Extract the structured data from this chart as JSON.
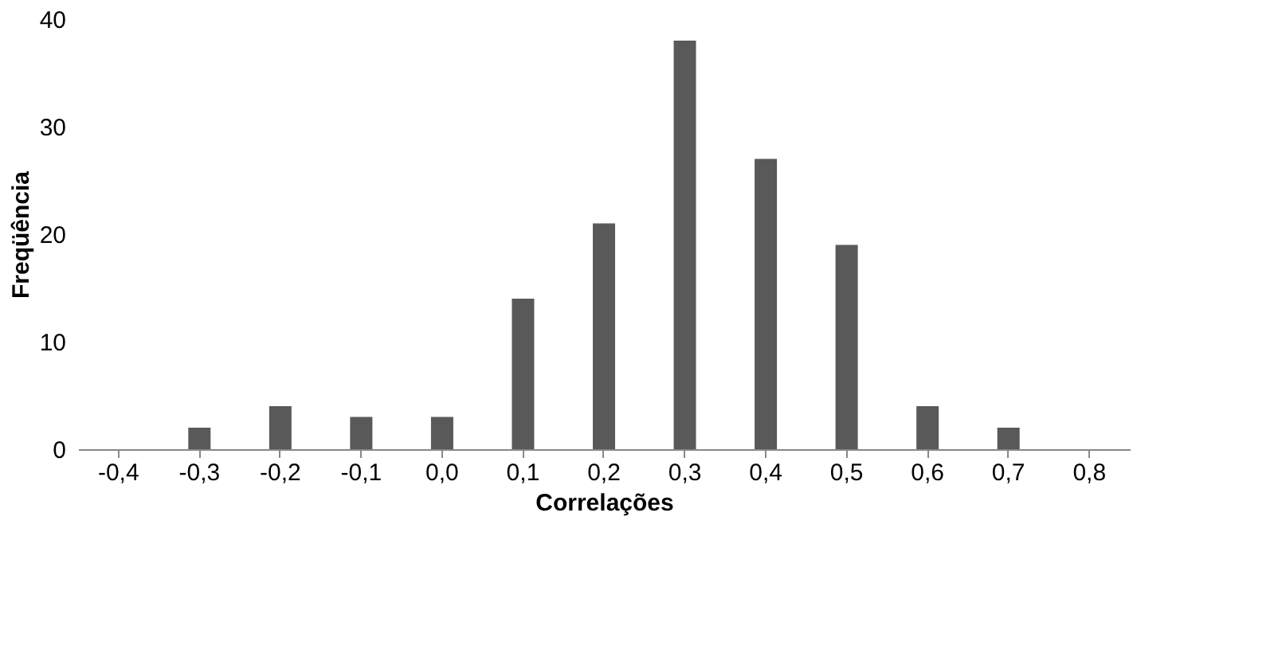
{
  "chart_data": {
    "type": "bar",
    "xlabel": "Correlações",
    "ylabel": "Freqüência",
    "categories": [
      "-0,4",
      "-0,3",
      "-0,2",
      "-0,1",
      "0,0",
      "0,1",
      "0,2",
      "0,3",
      "0,4",
      "0,5",
      "0,6",
      "0,7",
      "0,8"
    ],
    "values": [
      0,
      2,
      4,
      3,
      3,
      14,
      21,
      38,
      27,
      19,
      4,
      2,
      0
    ],
    "color": "#595959",
    "ylim": [
      0,
      40
    ],
    "yticks": [
      0,
      10,
      20,
      30,
      40
    ],
    "grid": false
  }
}
